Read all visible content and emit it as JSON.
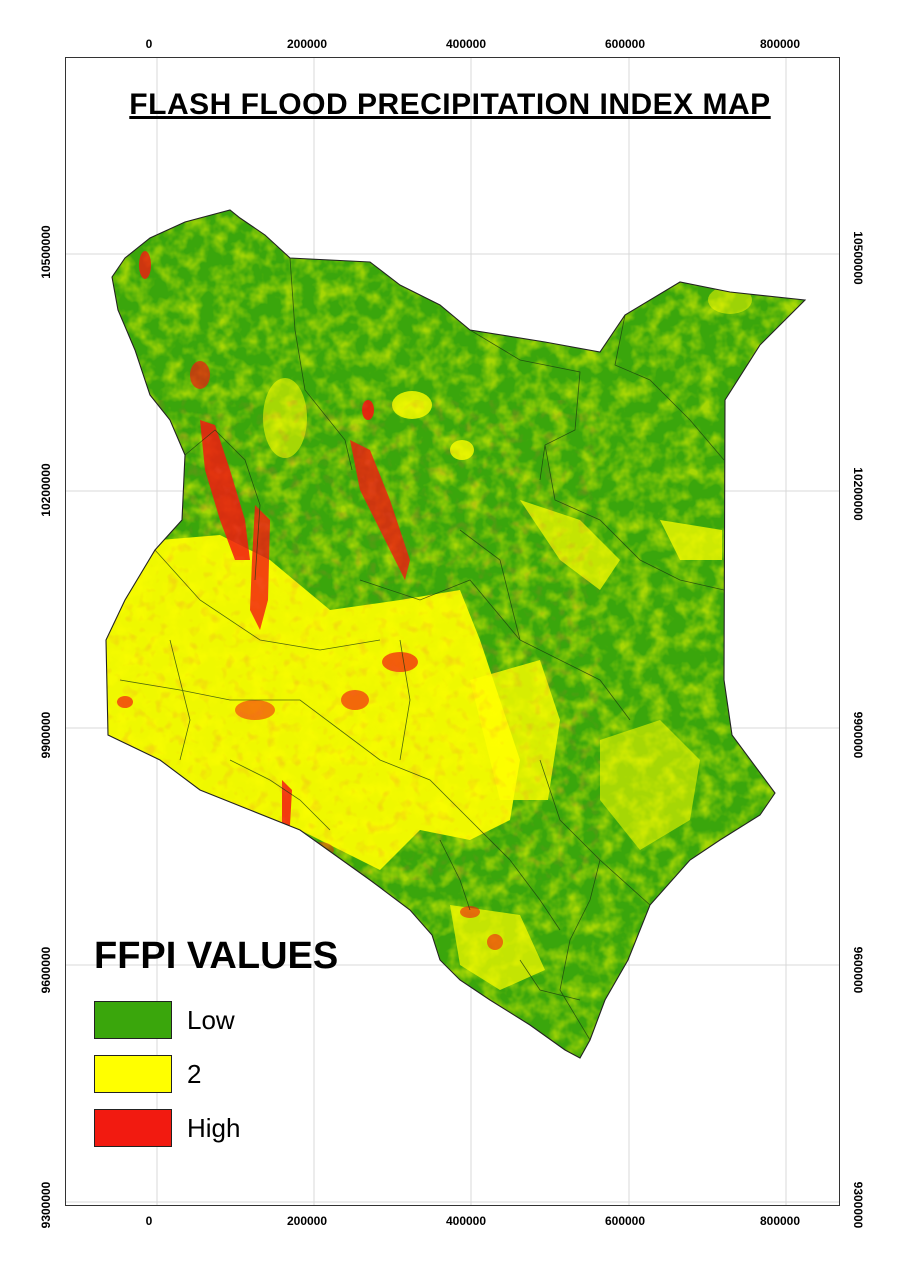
{
  "title": "FLASH FLOOD PRECIPITATION INDEX MAP",
  "axes": {
    "x_ticks": [
      "0",
      "200000",
      "400000",
      "600000",
      "800000"
    ],
    "y_ticks": [
      "10500000",
      "10200000",
      "9900000",
      "9600000",
      "9300000"
    ]
  },
  "legend": {
    "title": "FFPI VALUES",
    "items": [
      {
        "label": "Low",
        "color": "#3aa60c"
      },
      {
        "label": "2",
        "color": "#ffff00"
      },
      {
        "label": "High",
        "color": "#f21a10"
      }
    ]
  },
  "colors": {
    "low": "#3aa60c",
    "medium": "#ffff00",
    "high": "#f21a10",
    "boundary": "#1a3a10",
    "grid": "#d9d9d9"
  }
}
